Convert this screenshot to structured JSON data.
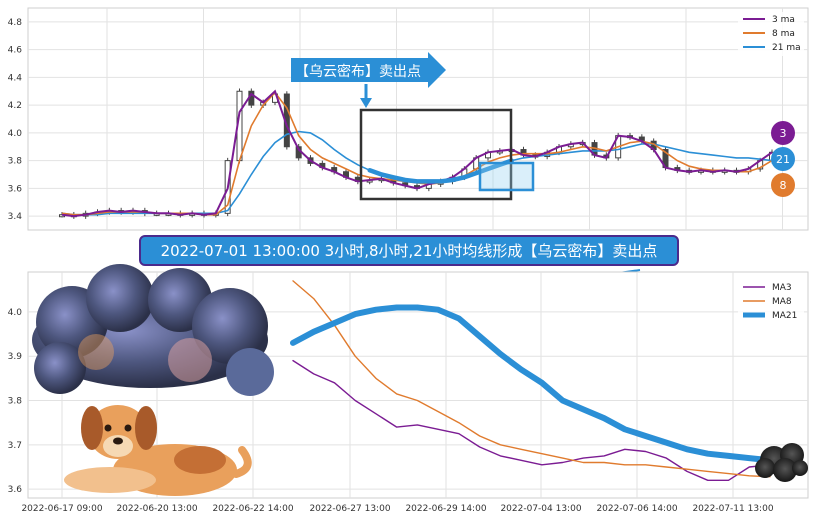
{
  "colors": {
    "ma3": "#7b1c93",
    "ma8": "#e07b2e",
    "ma21": "#2b8fd6",
    "panel_bg": "#ffffff",
    "grid": "#e2e2e2",
    "banner_bg": "#2b8fd6",
    "banner_border": "#4b2a8c"
  },
  "top_annotation": "【乌云密布】卖出点",
  "banner": "2022-07-01 13:00:00 3小时,8小时,21小时均线形成【乌云密布】卖出点",
  "badges": {
    "ma3": "3",
    "ma21": "21",
    "ma8": "8"
  },
  "chart_data": [
    {
      "type": "line",
      "panel": "top",
      "ylim": [
        3.3,
        4.9
      ],
      "y_ticks": [
        "3.4",
        "3.6",
        "3.8",
        "4.0",
        "4.2",
        "4.4",
        "4.6",
        "4.8"
      ],
      "x": [
        0,
        6,
        12,
        18,
        24,
        30,
        36,
        42,
        48,
        54,
        60,
        66,
        72,
        78,
        84,
        90,
        96,
        102,
        108,
        114,
        120,
        126,
        132,
        138,
        144,
        150,
        156,
        162,
        168,
        174,
        180,
        186,
        192,
        198,
        204,
        210,
        216,
        222,
        228,
        234,
        240,
        246,
        252,
        258,
        264,
        270,
        276,
        282,
        288,
        294,
        300,
        306,
        312,
        318,
        324,
        330,
        336,
        342,
        348,
        354,
        360
      ],
      "candles_close": [
        3.41,
        3.4,
        3.42,
        3.43,
        3.44,
        3.43,
        3.44,
        3.42,
        3.42,
        3.42,
        3.41,
        3.42,
        3.41,
        3.42,
        3.8,
        4.3,
        4.2,
        4.22,
        4.28,
        3.9,
        3.82,
        3.78,
        3.75,
        3.72,
        3.68,
        3.65,
        3.66,
        3.67,
        3.64,
        3.62,
        3.6,
        3.63,
        3.65,
        3.68,
        3.74,
        3.82,
        3.86,
        3.87,
        3.88,
        3.84,
        3.83,
        3.86,
        3.9,
        3.92,
        3.93,
        3.84,
        3.82,
        3.98,
        3.97,
        3.94,
        3.88,
        3.75,
        3.73,
        3.72,
        3.73,
        3.72,
        3.73,
        3.72,
        3.74,
        3.8,
        3.86
      ],
      "series": [
        {
          "name": "3 ma",
          "values": [
            3.41,
            3.4,
            3.41,
            3.43,
            3.44,
            3.43,
            3.44,
            3.43,
            3.42,
            3.42,
            3.41,
            3.42,
            3.41,
            3.42,
            3.6,
            4.15,
            4.28,
            4.22,
            4.3,
            4.05,
            3.88,
            3.8,
            3.75,
            3.72,
            3.68,
            3.65,
            3.66,
            3.67,
            3.64,
            3.62,
            3.6,
            3.63,
            3.65,
            3.68,
            3.74,
            3.82,
            3.86,
            3.87,
            3.88,
            3.84,
            3.83,
            3.86,
            3.9,
            3.92,
            3.93,
            3.84,
            3.82,
            3.98,
            3.97,
            3.94,
            3.88,
            3.75,
            3.73,
            3.72,
            3.73,
            3.72,
            3.73,
            3.72,
            3.74,
            3.8,
            3.86
          ]
        },
        {
          "name": "8 ma",
          "values": [
            3.42,
            3.41,
            3.41,
            3.42,
            3.43,
            3.43,
            3.43,
            3.43,
            3.42,
            3.42,
            3.42,
            3.42,
            3.41,
            3.41,
            3.48,
            3.8,
            4.05,
            4.2,
            4.29,
            4.18,
            3.98,
            3.88,
            3.82,
            3.78,
            3.74,
            3.7,
            3.68,
            3.67,
            3.66,
            3.65,
            3.64,
            3.63,
            3.64,
            3.66,
            3.69,
            3.74,
            3.79,
            3.82,
            3.84,
            3.85,
            3.85,
            3.85,
            3.86,
            3.88,
            3.9,
            3.89,
            3.87,
            3.9,
            3.93,
            3.94,
            3.92,
            3.86,
            3.8,
            3.76,
            3.74,
            3.73,
            3.73,
            3.72,
            3.72,
            3.75,
            3.8
          ]
        },
        {
          "name": "21 ma",
          "values": [
            3.42,
            3.41,
            3.41,
            3.41,
            3.42,
            3.42,
            3.42,
            3.42,
            3.42,
            3.42,
            3.42,
            3.42,
            3.42,
            3.42,
            3.44,
            3.56,
            3.7,
            3.83,
            3.93,
            3.99,
            4.01,
            4.0,
            3.95,
            3.88,
            3.82,
            3.77,
            3.73,
            3.7,
            3.68,
            3.66,
            3.65,
            3.65,
            3.65,
            3.66,
            3.68,
            3.71,
            3.74,
            3.77,
            3.8,
            3.82,
            3.83,
            3.84,
            3.85,
            3.86,
            3.87,
            3.87,
            3.87,
            3.88,
            3.9,
            3.92,
            3.92,
            3.9,
            3.88,
            3.86,
            3.85,
            3.84,
            3.83,
            3.82,
            3.82,
            3.81,
            3.8
          ]
        }
      ]
    },
    {
      "type": "line",
      "panel": "bottom",
      "ylim": [
        3.58,
        4.09
      ],
      "y_ticks": [
        "3.6",
        "3.7",
        "3.8",
        "3.9",
        "4.0"
      ],
      "x_ticks": [
        "2022-06-17 09:00",
        "2022-06-20 13:00",
        "2022-06-22 14:00",
        "2022-06-27 13:00",
        "2022-06-29 14:00",
        "2022-07-04 13:00",
        "2022-07-06 14:00",
        "2022-07-11 13:00"
      ],
      "x": [
        0,
        1,
        2,
        3,
        4,
        5,
        6,
        7,
        8,
        9,
        10,
        11,
        12,
        13,
        14,
        15,
        16,
        17,
        18,
        19,
        20,
        21,
        22,
        23
      ],
      "series": [
        {
          "name": "MA3",
          "values": [
            3.89,
            3.86,
            3.84,
            3.8,
            3.77,
            3.74,
            3.745,
            3.735,
            3.725,
            3.695,
            3.675,
            3.665,
            3.655,
            3.66,
            3.67,
            3.675,
            3.69,
            3.685,
            3.67,
            3.64,
            3.62,
            3.62,
            3.65,
            3.655
          ]
        },
        {
          "name": "MA8",
          "values": [
            4.07,
            4.03,
            3.97,
            3.9,
            3.85,
            3.815,
            3.8,
            3.775,
            3.75,
            3.72,
            3.7,
            3.69,
            3.68,
            3.67,
            3.66,
            3.66,
            3.655,
            3.655,
            3.65,
            3.645,
            3.64,
            3.635,
            3.63,
            3.628
          ]
        },
        {
          "name": "MA21",
          "values": [
            3.93,
            3.955,
            3.975,
            3.995,
            4.005,
            4.01,
            4.01,
            4.005,
            3.985,
            3.945,
            3.905,
            3.87,
            3.84,
            3.8,
            3.78,
            3.76,
            3.735,
            3.72,
            3.705,
            3.69,
            3.68,
            3.675,
            3.67,
            3.665
          ]
        }
      ]
    }
  ]
}
